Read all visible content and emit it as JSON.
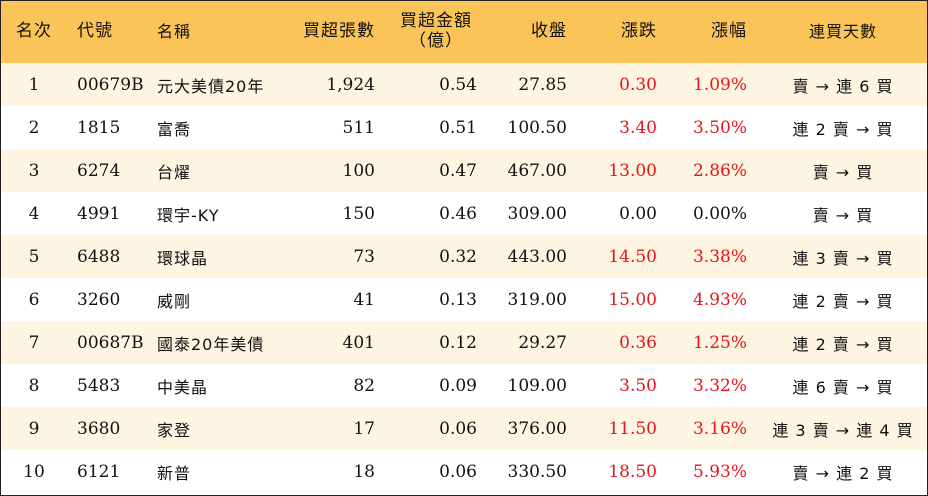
{
  "colors": {
    "header_bg": "#fbc459",
    "odd_row_bg": "#fdf4e1",
    "up_red": "#e8141c"
  },
  "headers": {
    "rank": "名次",
    "code": "代號",
    "name": "名稱",
    "net_buy_lots": "買超張數",
    "net_buy_amount_line1": "買超金額",
    "net_buy_amount_line2": "（億）",
    "close": "收盤",
    "change": "漲跌",
    "change_pct": "漲幅",
    "streak": "連買天數"
  },
  "rows": [
    {
      "rank": "1",
      "code": "00679B",
      "name": "元大美債20年",
      "lots": "1,924",
      "amount": "0.54",
      "close": "27.85",
      "change": "0.30",
      "pct": "1.09%",
      "streak": "賣 → 連 6 買"
    },
    {
      "rank": "2",
      "code": "1815",
      "name": "富喬",
      "lots": "511",
      "amount": "0.51",
      "close": "100.50",
      "change": "3.40",
      "pct": "3.50%",
      "streak": "連 2 賣 → 買"
    },
    {
      "rank": "3",
      "code": "6274",
      "name": "台燿",
      "lots": "100",
      "amount": "0.47",
      "close": "467.00",
      "change": "13.00",
      "pct": "2.86%",
      "streak": "賣 → 買"
    },
    {
      "rank": "4",
      "code": "4991",
      "name": "環宇-KY",
      "lots": "150",
      "amount": "0.46",
      "close": "309.00",
      "change": "0.00",
      "pct": "0.00%",
      "streak": "賣 → 買"
    },
    {
      "rank": "5",
      "code": "6488",
      "name": "環球晶",
      "lots": "73",
      "amount": "0.32",
      "close": "443.00",
      "change": "14.50",
      "pct": "3.38%",
      "streak": "連 3 賣 → 買"
    },
    {
      "rank": "6",
      "code": "3260",
      "name": "威剛",
      "lots": "41",
      "amount": "0.13",
      "close": "319.00",
      "change": "15.00",
      "pct": "4.93%",
      "streak": "連 2 賣 → 買"
    },
    {
      "rank": "7",
      "code": "00687B",
      "name": "國泰20年美債",
      "lots": "401",
      "amount": "0.12",
      "close": "29.27",
      "change": "0.36",
      "pct": "1.25%",
      "streak": "連 2 賣 → 買"
    },
    {
      "rank": "8",
      "code": "5483",
      "name": "中美晶",
      "lots": "82",
      "amount": "0.09",
      "close": "109.00",
      "change": "3.50",
      "pct": "3.32%",
      "streak": "連 6 賣 → 買"
    },
    {
      "rank": "9",
      "code": "3680",
      "name": "家登",
      "lots": "17",
      "amount": "0.06",
      "close": "376.00",
      "change": "11.50",
      "pct": "3.16%",
      "streak": "連 3 賣 → 連 4 買"
    },
    {
      "rank": "10",
      "code": "6121",
      "name": "新普",
      "lots": "18",
      "amount": "0.06",
      "close": "330.50",
      "change": "18.50",
      "pct": "5.93%",
      "streak": "賣 → 連 2 買"
    }
  ]
}
